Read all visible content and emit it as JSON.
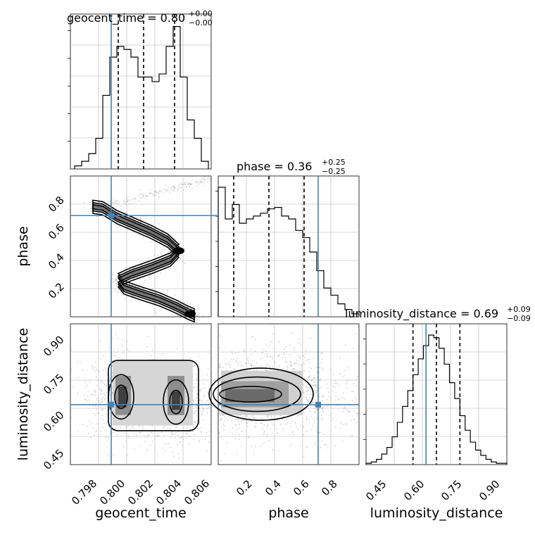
{
  "chart_data": {
    "type": "corner",
    "parameters": [
      "geocent_time",
      "phase",
      "luminosity_distance"
    ],
    "truths": {
      "geocent_time": 0.7996,
      "phase": 0.71,
      "luminosity_distance": 0.65
    },
    "colors": {
      "truth": "#4682b4",
      "hist": "#000000",
      "grid": "#b0b0b0"
    },
    "grid": true,
    "panels": [
      {
        "id": "geocent_time",
        "kind": "hist1d",
        "title": {
          "label": "geocent_time = 0.80",
          "sup": "+0.00",
          "sub": "−0.00"
        },
        "xlim": [
          0.7967,
          0.8067
        ],
        "quantiles": [
          0.8001,
          0.8019,
          0.8041
        ],
        "bin_edges": [
          0.797,
          0.7975,
          0.798,
          0.7985,
          0.799,
          0.7995,
          0.8,
          0.8005,
          0.801,
          0.8015,
          0.802,
          0.8025,
          0.803,
          0.8035,
          0.804,
          0.8045,
          0.805,
          0.8055,
          0.806,
          0.8065
        ],
        "counts": [
          0.02,
          0.05,
          0.1,
          0.2,
          0.48,
          0.73,
          0.8,
          0.78,
          0.73,
          0.6,
          0.6,
          0.57,
          0.62,
          0.8,
          0.93,
          0.6,
          0.32,
          0.2,
          0.05
        ]
      },
      {
        "id": "phase",
        "kind": "hist1d",
        "title": {
          "label": "phase = 0.36",
          "sup": "+0.25",
          "sub": "−0.25"
        },
        "xlim": [
          0.0,
          1.0
        ],
        "quantiles": [
          0.11,
          0.36,
          0.61
        ],
        "bin_edges": [
          0.0,
          0.05,
          0.1,
          0.15,
          0.2,
          0.25,
          0.3,
          0.35,
          0.4,
          0.45,
          0.5,
          0.55,
          0.6,
          0.65,
          0.7,
          0.75,
          0.8,
          0.85,
          0.9,
          0.95,
          1.0
        ],
        "counts": [
          0.9,
          0.68,
          0.78,
          0.65,
          0.68,
          0.7,
          0.72,
          0.75,
          0.76,
          0.7,
          0.68,
          0.6,
          0.55,
          0.45,
          0.32,
          0.2,
          0.15,
          0.09,
          0.05,
          0.02
        ]
      },
      {
        "id": "luminosity_distance",
        "kind": "hist1d",
        "title": {
          "label": "luminosity_distance = 0.69",
          "sup": "+0.09",
          "sub": "−0.09"
        },
        "xlim": [
          0.42,
          0.96
        ],
        "xticks": [
          "0.45",
          "0.60",
          "0.75",
          "0.90"
        ],
        "xticks_values": [
          0.45,
          0.6,
          0.75,
          0.9
        ],
        "xlabel": "luminosity_distance",
        "quantiles": [
          0.6,
          0.69,
          0.78
        ],
        "bin_edges": [
          0.42,
          0.44,
          0.46,
          0.48,
          0.5,
          0.52,
          0.54,
          0.56,
          0.58,
          0.6,
          0.62,
          0.64,
          0.66,
          0.68,
          0.7,
          0.72,
          0.74,
          0.76,
          0.78,
          0.8,
          0.82,
          0.84,
          0.86,
          0.88,
          0.9,
          0.92,
          0.94,
          0.96
        ],
        "counts": [
          0.01,
          0.02,
          0.04,
          0.08,
          0.13,
          0.21,
          0.32,
          0.44,
          0.56,
          0.68,
          0.8,
          0.9,
          0.98,
          0.96,
          0.88,
          0.76,
          0.62,
          0.5,
          0.37,
          0.26,
          0.17,
          0.11,
          0.07,
          0.04,
          0.02,
          0.01,
          0.01
        ]
      },
      {
        "id": "phase_vs_geocent_time",
        "kind": "hist2d",
        "x": "geocent_time",
        "y": "phase",
        "xlim": [
          0.7967,
          0.8067
        ],
        "ylim": [
          0.02,
          0.98
        ],
        "yticks": [
          "0.2",
          "0.4",
          "0.6",
          "0.8"
        ],
        "yticks_values": [
          0.2,
          0.4,
          0.6,
          0.8
        ],
        "ylabel": "phase",
        "ridge": [
          [
            0.7983,
            0.77
          ],
          [
            0.799,
            0.76
          ],
          [
            0.8,
            0.7
          ],
          [
            0.8012,
            0.65
          ],
          [
            0.8024,
            0.6
          ],
          [
            0.8036,
            0.54
          ],
          [
            0.8044,
            0.47
          ],
          [
            0.8038,
            0.41
          ],
          [
            0.8025,
            0.36
          ],
          [
            0.801,
            0.31
          ],
          [
            0.8001,
            0.27
          ],
          [
            0.8005,
            0.22
          ],
          [
            0.8017,
            0.18
          ],
          [
            0.803,
            0.14
          ],
          [
            0.8042,
            0.09
          ],
          [
            0.805,
            0.05
          ],
          [
            0.8055,
            0.03
          ]
        ],
        "upper_tail": [
          [
            0.799,
            0.78
          ],
          [
            0.801,
            0.82
          ],
          [
            0.803,
            0.87
          ],
          [
            0.805,
            0.92
          ],
          [
            0.8065,
            0.96
          ]
        ]
      },
      {
        "id": "luminosity_distance_vs_geocent_time",
        "kind": "hist2d",
        "x": "geocent_time",
        "y": "luminosity_distance",
        "xlim": [
          0.7967,
          0.8067
        ],
        "ylim": [
          0.42,
          0.96
        ],
        "xticks": [
          "0.798",
          "0.800",
          "0.802",
          "0.804",
          "0.806"
        ],
        "xticks_values": [
          0.798,
          0.8,
          0.802,
          0.804,
          0.806
        ],
        "yticks": [
          "0.45",
          "0.60",
          "0.75",
          "0.90"
        ],
        "yticks_values": [
          0.45,
          0.6,
          0.75,
          0.9
        ],
        "xlabel": "geocent_time",
        "ylabel": "luminosity_distance",
        "modes": [
          [
            0.8003,
            0.68
          ],
          [
            0.8042,
            0.66
          ]
        ]
      },
      {
        "id": "luminosity_distance_vs_phase",
        "kind": "hist2d",
        "x": "phase",
        "y": "luminosity_distance",
        "xlim": [
          0.0,
          1.0
        ],
        "ylim": [
          0.42,
          0.96
        ],
        "xticks": [
          "0.2",
          "0.4",
          "0.6",
          "0.8"
        ],
        "xticks_values": [
          0.2,
          0.4,
          0.6,
          0.8
        ],
        "xlabel": "phase",
        "modes": [
          [
            0.05,
            0.69
          ],
          [
            0.35,
            0.68
          ]
        ]
      }
    ]
  }
}
